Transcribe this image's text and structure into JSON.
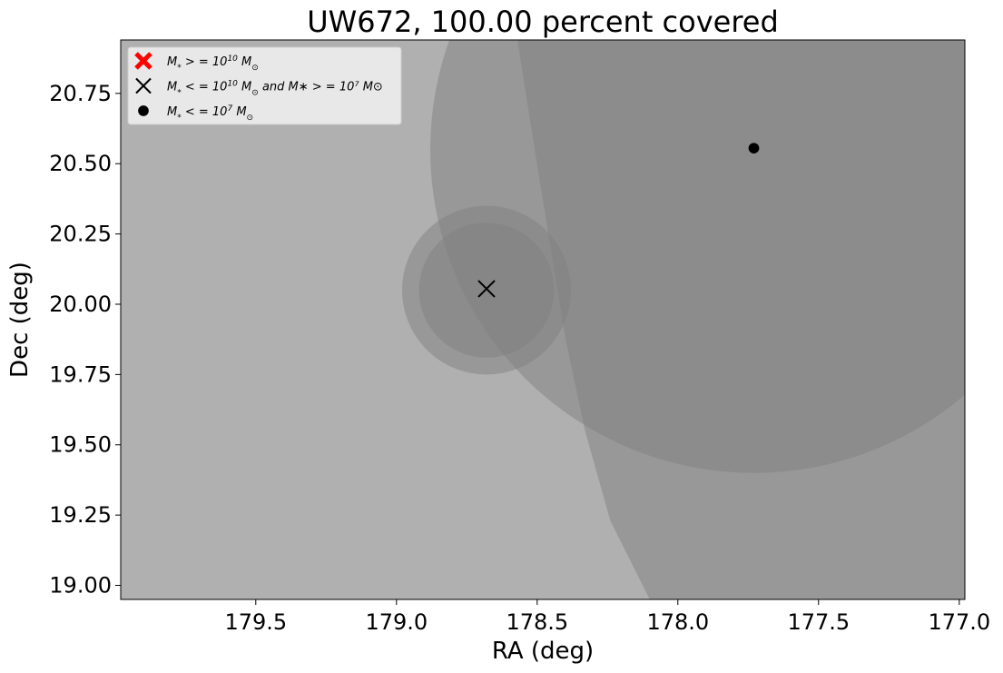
{
  "chart_data": {
    "type": "scatter",
    "title": "UW672, 100.00 percent covered",
    "xlabel": "RA (deg)",
    "ylabel": "Dec (deg)",
    "xlim": [
      179.98,
      176.98
    ],
    "ylim": [
      18.95,
      20.94
    ],
    "x_ticks": [
      179.5,
      179.0,
      178.5,
      178.0,
      177.5,
      177.0
    ],
    "x_tick_labels": [
      "179.5",
      "179.0",
      "178.5",
      "178.0",
      "177.5",
      "177.0"
    ],
    "y_ticks": [
      19.0,
      19.25,
      19.5,
      19.75,
      20.0,
      20.25,
      20.5,
      20.75
    ],
    "y_tick_labels": [
      "19.00",
      "19.25",
      "19.50",
      "19.75",
      "20.00",
      "20.25",
      "20.50",
      "20.75"
    ],
    "background_color": "#b0b0b0",
    "coverage_regions": [
      {
        "shape": "circle",
        "cx": 177.73,
        "cy": 20.55,
        "r": 1.15,
        "color": "#808080",
        "opacity": 0.5
      },
      {
        "shape": "circle",
        "cx": 178.68,
        "cy": 20.05,
        "r": 0.3,
        "color": "#808080",
        "opacity": 0.5
      },
      {
        "shape": "circle",
        "cx": 178.68,
        "cy": 20.05,
        "r": 0.24,
        "color": "#808080",
        "opacity": 0.5
      },
      {
        "shape": "polygon",
        "color": "#808080",
        "opacity": 0.5,
        "points": [
          [
            178.57,
            20.94
          ],
          [
            178.52,
            20.62
          ],
          [
            178.46,
            20.25
          ],
          [
            178.4,
            19.88
          ],
          [
            178.33,
            19.55
          ],
          [
            178.24,
            19.23
          ],
          [
            178.1,
            18.95
          ],
          [
            176.98,
            18.95
          ],
          [
            176.98,
            20.94
          ]
        ]
      }
    ],
    "series": [
      {
        "name": "M_* >= 10^10 M_sun",
        "marker": "bold-x",
        "color": "#ff0000",
        "points": []
      },
      {
        "name": "M_* <= 10^10 M_sun and M_* >= 10^7 M_sun",
        "marker": "x",
        "color": "#000000",
        "points": [
          [
            178.68,
            20.055
          ]
        ]
      },
      {
        "name": "M_* <= 10^7 M_sun",
        "marker": "dot",
        "color": "#000000",
        "points": [
          [
            177.73,
            20.555
          ]
        ]
      }
    ],
    "legend": {
      "placement": "top-left",
      "entries": [
        {
          "marker": "bold-x",
          "color": "#ff0000",
          "prefix": "M",
          "sub": "*",
          "rel": " > = 10",
          "sup": "10",
          "unit": "M",
          "unit_sub": "⊙",
          "extra": ""
        },
        {
          "marker": "x",
          "color": "#000000",
          "prefix": "M",
          "sub": "*",
          "rel": " < = 10",
          "sup": "10",
          "unit": "M",
          "unit_sub": "⊙",
          "extra": "  and  M∗ > = 10⁷ M⊙"
        },
        {
          "marker": "dot",
          "color": "#000000",
          "prefix": "M",
          "sub": "*",
          "rel": " < = 10",
          "sup": "7",
          "unit": "M",
          "unit_sub": "⊙",
          "extra": ""
        }
      ]
    }
  }
}
